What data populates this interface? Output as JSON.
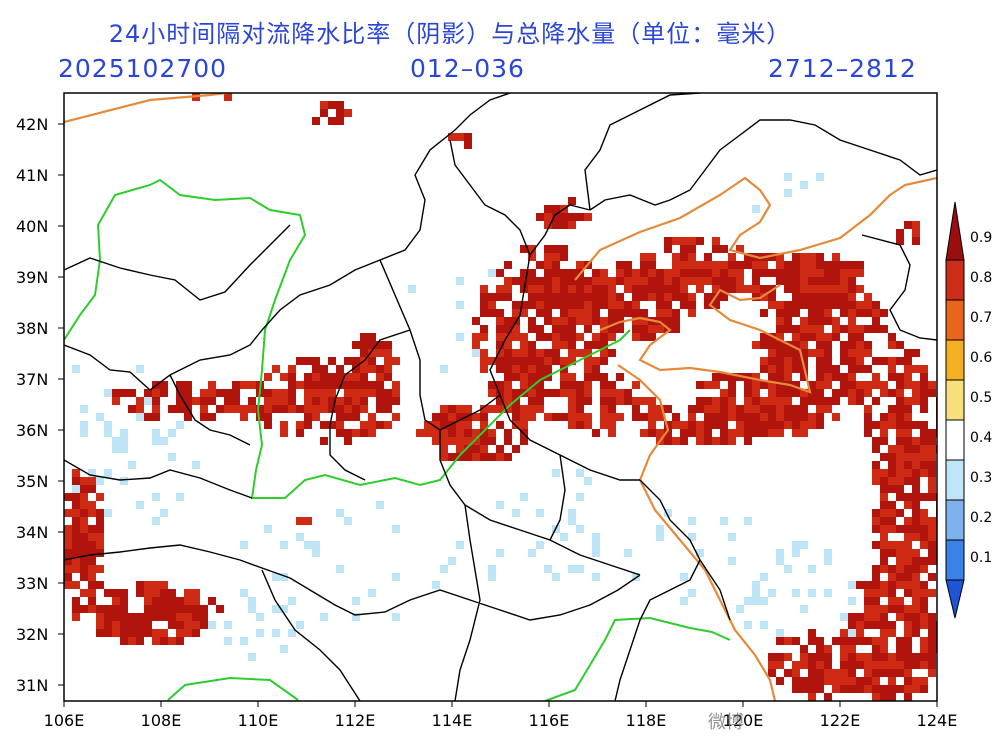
{
  "title": "24小时间隔对流降水比率（阴影）与总降水量（单位：毫米）",
  "run_time": "2025102700",
  "forecast_hours": "012–036",
  "valid_period": "2712–2812",
  "lat_labels": [
    "42N",
    "41N",
    "40N",
    "39N",
    "38N",
    "37N",
    "36N",
    "35N",
    "34N",
    "33N",
    "32N",
    "31N"
  ],
  "lon_labels": [
    "106E",
    "108E",
    "110E",
    "112E",
    "114E",
    "116E",
    "118E",
    "120E",
    "122E",
    "124E"
  ],
  "colorbar": {
    "levels": [
      "0.1",
      "0.2",
      "0.3",
      "0.4",
      "0.5",
      "0.6",
      "0.7",
      "0.8",
      "0.9"
    ],
    "colors": [
      "#1e55d8",
      "#3a82e6",
      "#7eb2ee",
      "#bfe6f8",
      "#ffffff",
      "#f7e07a",
      "#f5b021",
      "#e8661a",
      "#cc2c18",
      "#9a0e0e"
    ]
  },
  "colors": {
    "heavy": "#b0140c",
    "medium": "#cf2a14",
    "light": "#bde5f5",
    "coast": "#e58a3a",
    "river": "#2ecc2e",
    "border": "#000000",
    "title": "#2b46d6"
  },
  "watermark": "微博"
}
